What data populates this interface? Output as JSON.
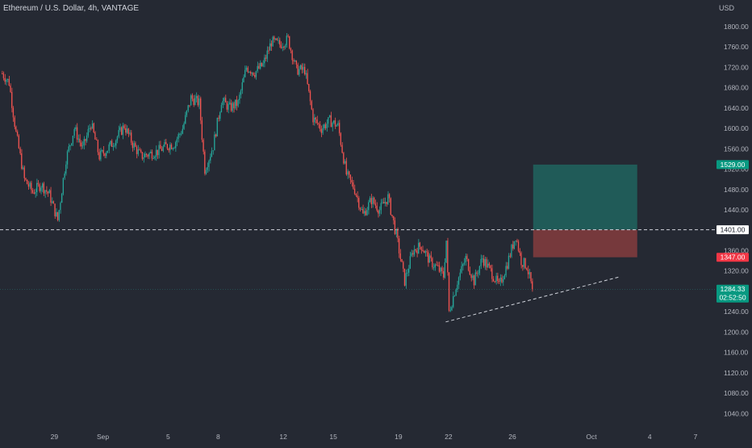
{
  "symbol_title": "Ethereum / U.S. Dollar, 4h, VANTAGE",
  "currency": "USD",
  "colors": {
    "background": "#252933",
    "up": "#26a69a",
    "down": "#ef5350",
    "axis_text": "#b2b5be",
    "profit_zone": "#1f5f5b",
    "loss_zone": "#7a3a3d",
    "tag_target": "#089981",
    "tag_stop": "#f23645",
    "tag_price": "#089981"
  },
  "chart_data": {
    "type": "candlestick",
    "ylim": [
      1020,
      1830
    ],
    "y_ticks": [
      1800,
      1760,
      1720,
      1680,
      1640,
      1600,
      1560,
      1520,
      1480,
      1440,
      1400,
      1360,
      1320,
      1280,
      1240,
      1200,
      1160,
      1120,
      1080,
      1040
    ],
    "y_tick_labels": [
      "1800.00",
      "1760.00",
      "1720.00",
      "1680.00",
      "1640.00",
      "1600.00",
      "1560.00",
      "1520.00",
      "1480.00",
      "1440.00",
      "1400.00",
      "1360.00",
      "1320.00",
      "1280.00",
      "1240.00",
      "1200.00",
      "1160.00",
      "1120.00",
      "1080.00",
      "1040.00"
    ],
    "x_tick_labels": [
      "29",
      "Sep",
      "5",
      "8",
      "12",
      "15",
      "19",
      "22",
      "26",
      "Oct",
      "4",
      "7"
    ],
    "x_ticks": [
      {
        "label": "29",
        "bar": 38
      },
      {
        "label": "Sep",
        "bar": 73
      },
      {
        "label": "5",
        "bar": 120
      },
      {
        "label": "8",
        "bar": 156
      },
      {
        "label": "12",
        "bar": 203
      },
      {
        "label": "15",
        "bar": 239
      },
      {
        "label": "19",
        "bar": 286
      },
      {
        "label": "22",
        "bar": 322
      },
      {
        "label": "26",
        "bar": 368
      },
      {
        "label": "Oct",
        "bar": 425
      },
      {
        "label": "4",
        "bar": 467
      },
      {
        "label": "7",
        "bar": 500
      }
    ],
    "series": [
      {
        "bar": 0,
        "close": 1708
      },
      {
        "bar": 5,
        "close": 1690
      },
      {
        "bar": 10,
        "close": 1590
      },
      {
        "bar": 16,
        "close": 1500
      },
      {
        "bar": 22,
        "close": 1475
      },
      {
        "bar": 28,
        "close": 1490
      },
      {
        "bar": 34,
        "close": 1470
      },
      {
        "bar": 40,
        "close": 1420
      },
      {
        "bar": 46,
        "close": 1540
      },
      {
        "bar": 52,
        "close": 1600
      },
      {
        "bar": 58,
        "close": 1560
      },
      {
        "bar": 64,
        "close": 1610
      },
      {
        "bar": 70,
        "close": 1545
      },
      {
        "bar": 76,
        "close": 1560
      },
      {
        "bar": 82,
        "close": 1580
      },
      {
        "bar": 88,
        "close": 1605
      },
      {
        "bar": 94,
        "close": 1570
      },
      {
        "bar": 100,
        "close": 1545
      },
      {
        "bar": 106,
        "close": 1550
      },
      {
        "bar": 112,
        "close": 1555
      },
      {
        "bar": 118,
        "close": 1565
      },
      {
        "bar": 124,
        "close": 1570
      },
      {
        "bar": 130,
        "close": 1600
      },
      {
        "bar": 136,
        "close": 1660
      },
      {
        "bar": 142,
        "close": 1650
      },
      {
        "bar": 146,
        "close": 1520
      },
      {
        "bar": 152,
        "close": 1565
      },
      {
        "bar": 158,
        "close": 1655
      },
      {
        "bar": 164,
        "close": 1640
      },
      {
        "bar": 170,
        "close": 1650
      },
      {
        "bar": 176,
        "close": 1720
      },
      {
        "bar": 182,
        "close": 1710
      },
      {
        "bar": 188,
        "close": 1725
      },
      {
        "bar": 194,
        "close": 1770
      },
      {
        "bar": 200,
        "close": 1765
      },
      {
        "bar": 206,
        "close": 1775
      },
      {
        "bar": 212,
        "close": 1715
      },
      {
        "bar": 218,
        "close": 1715
      },
      {
        "bar": 224,
        "close": 1620
      },
      {
        "bar": 230,
        "close": 1600
      },
      {
        "bar": 236,
        "close": 1615
      },
      {
        "bar": 242,
        "close": 1605
      },
      {
        "bar": 248,
        "close": 1510
      },
      {
        "bar": 254,
        "close": 1480
      },
      {
        "bar": 260,
        "close": 1430
      },
      {
        "bar": 266,
        "close": 1460
      },
      {
        "bar": 272,
        "close": 1440
      },
      {
        "bar": 278,
        "close": 1465
      },
      {
        "bar": 284,
        "close": 1390
      },
      {
        "bar": 290,
        "close": 1300
      },
      {
        "bar": 296,
        "close": 1360
      },
      {
        "bar": 302,
        "close": 1370
      },
      {
        "bar": 308,
        "close": 1340
      },
      {
        "bar": 314,
        "close": 1325
      },
      {
        "bar": 318,
        "close": 1310
      },
      {
        "bar": 320,
        "close": 1380
      },
      {
        "bar": 322,
        "close": 1240
      },
      {
        "bar": 328,
        "close": 1300
      },
      {
        "bar": 334,
        "close": 1345
      },
      {
        "bar": 340,
        "close": 1300
      },
      {
        "bar": 346,
        "close": 1345
      },
      {
        "bar": 352,
        "close": 1320
      },
      {
        "bar": 358,
        "close": 1290
      },
      {
        "bar": 364,
        "close": 1335
      },
      {
        "bar": 370,
        "close": 1390
      },
      {
        "bar": 374,
        "close": 1340
      },
      {
        "bar": 378,
        "close": 1330
      },
      {
        "bar": 382,
        "close": 1284
      }
    ],
    "position_tool": {
      "target": 1529,
      "entry": 1401,
      "stop": 1347
    },
    "horizontal_line": 1401,
    "trendline": [
      {
        "bar": 320,
        "price": 1220
      },
      {
        "bar": 446,
        "price": 1309
      }
    ],
    "tags": [
      {
        "value": "1529.00",
        "price": 1529,
        "kind": "target"
      },
      {
        "value": "1401.00",
        "price": 1401,
        "kind": "line"
      },
      {
        "value": "1347.00",
        "price": 1347,
        "kind": "stop"
      },
      {
        "value": "1284.33",
        "price": 1284.33,
        "kind": "price"
      }
    ],
    "countdown": "02:52:50",
    "last_price": 1284.33
  }
}
